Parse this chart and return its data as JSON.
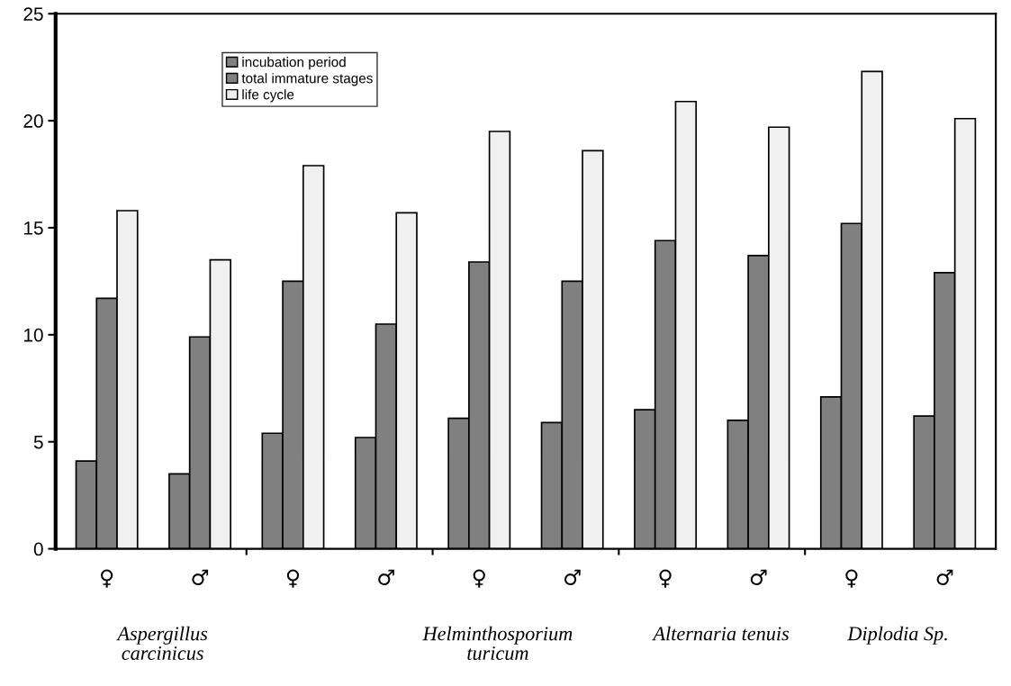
{
  "chart_data": {
    "type": "bar",
    "categories": [
      "♀",
      "♂",
      "♀",
      "♂",
      "♀",
      "♂",
      "♀",
      "♂",
      "♀",
      "♂"
    ],
    "series": [
      {
        "name": "incubation period",
        "color": "#808080",
        "values": [
          4.1,
          3.5,
          5.4,
          5.2,
          6.1,
          5.9,
          6.5,
          6.0,
          7.1,
          6.2
        ]
      },
      {
        "name": "total immature stages",
        "color": "#808080",
        "values": [
          11.7,
          9.9,
          12.5,
          10.5,
          13.4,
          12.5,
          14.4,
          13.7,
          15.2,
          12.9
        ]
      },
      {
        "name": "life cycle",
        "color": "#f0f0f0",
        "values": [
          15.8,
          13.5,
          17.9,
          15.7,
          19.5,
          18.6,
          20.9,
          19.7,
          22.3,
          20.1
        ]
      }
    ],
    "ylim": [
      0,
      25
    ],
    "yticks": [
      0,
      5,
      10,
      15,
      20,
      25
    ],
    "annotations": [
      "Aspergillus\ncarcinicus",
      "Helminthosporium\nturicum",
      "Alternaria tenuis",
      "Diplodia Sp."
    ],
    "legend": "top left",
    "grid": false
  }
}
